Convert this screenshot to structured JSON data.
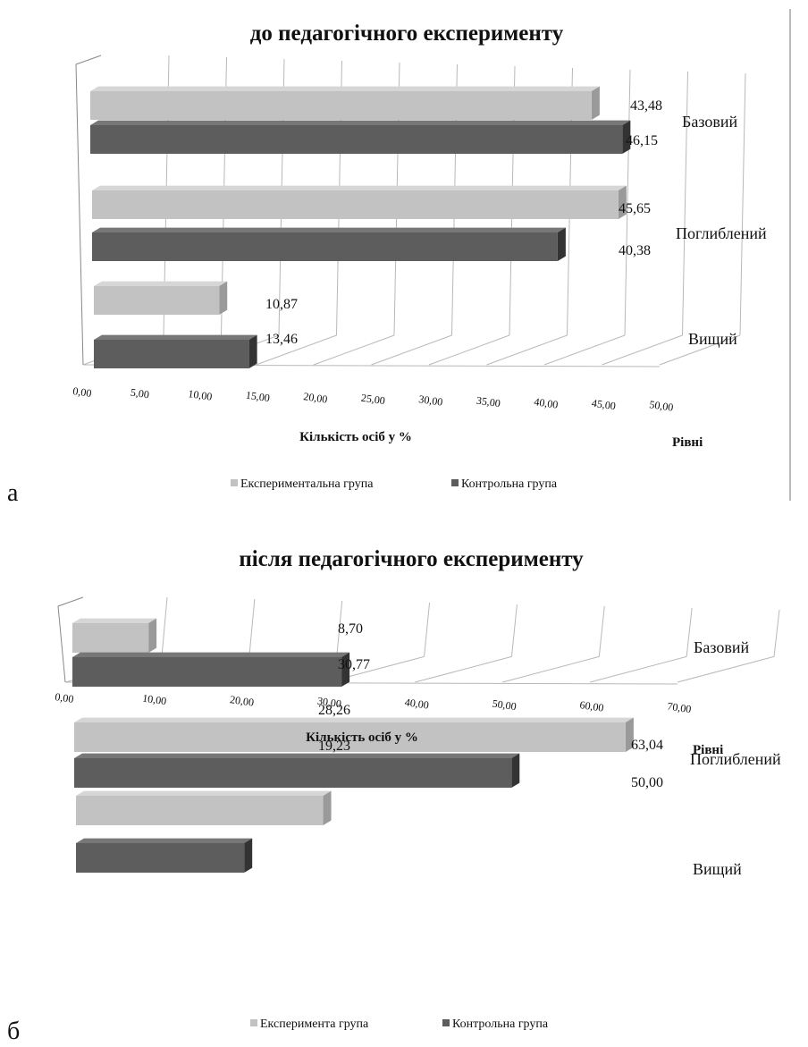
{
  "colors": {
    "experimental": "#c2c2c2",
    "experimental_top": "#d6d6d6",
    "experimental_side": "#9a9a9a",
    "control": "#5d5d5d",
    "control_top": "#777777",
    "control_side": "#333333",
    "grid": "#b8b8b8"
  },
  "chart_data": [
    {
      "type": "bar",
      "orientation": "horizontal-3d",
      "panel_label": "а",
      "title": "до педагогічного експерименту",
      "xlabel": "Кількість осіб у %",
      "level_axis_label": "Рівні",
      "categories": [
        "Базовий",
        "Поглиблений",
        "Вищий"
      ],
      "series": [
        {
          "name": "Експериментальна група",
          "values": [
            43.48,
            45.65,
            10.87
          ],
          "labels": [
            "43,48",
            "45,65",
            "10,87"
          ]
        },
        {
          "name": "Контрольна група",
          "values": [
            46.15,
            40.38,
            13.46
          ],
          "labels": [
            "46,15",
            "40,38",
            "13,46"
          ]
        }
      ],
      "xlim": [
        0,
        50
      ],
      "xticks": [
        "0,00",
        "5,00",
        "10,00",
        "15,00",
        "20,00",
        "25,00",
        "30,00",
        "35,00",
        "40,00",
        "45,00",
        "50,00"
      ],
      "grid": true,
      "legend": "bottom"
    },
    {
      "type": "bar",
      "orientation": "horizontal-3d",
      "panel_label": "б",
      "title": "після педагогічного експерименту",
      "xlabel": "Кількість осіб у %",
      "level_axis_label": "Рівні",
      "categories": [
        "Базовий",
        "Поглиблений",
        "Вищий"
      ],
      "series": [
        {
          "name": "Експеримента група",
          "values": [
            8.7,
            63.04,
            28.26
          ],
          "labels": [
            "8,70",
            "63,04",
            "28,26"
          ]
        },
        {
          "name": "Контрольна група",
          "values": [
            30.77,
            50.0,
            19.23
          ],
          "labels": [
            "30,77",
            "50,00",
            "19,23"
          ]
        }
      ],
      "xlim": [
        0,
        70
      ],
      "xticks": [
        "0,00",
        "10,00",
        "20,00",
        "30,00",
        "40,00",
        "50,00",
        "60,00",
        "70,00"
      ],
      "grid": true,
      "legend": "bottom"
    }
  ]
}
